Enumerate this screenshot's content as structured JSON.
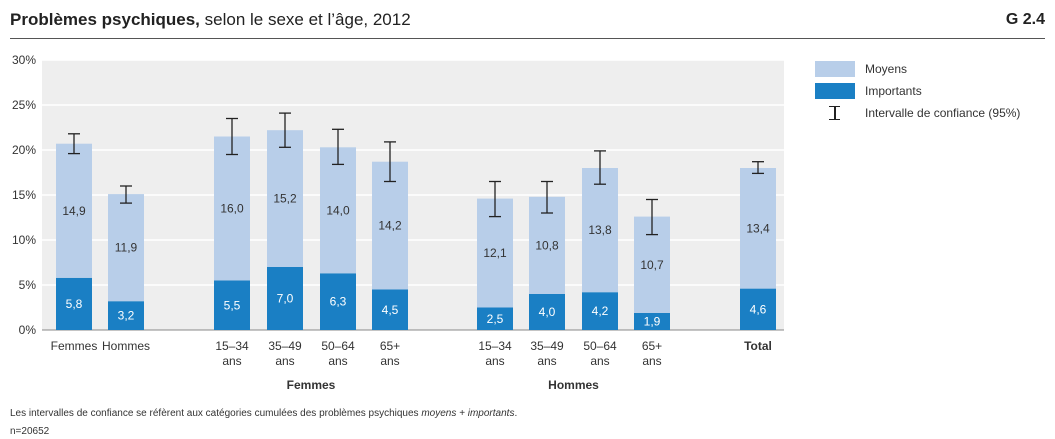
{
  "header": {
    "title_bold": "Problèmes psychiques,",
    "title_rest": " selon le sexe et l’âge, 2012",
    "figure_id": "G 2.4"
  },
  "legend": {
    "moyens": "Moyens",
    "importants": "Importants",
    "ci": "Intervalle de confiance (95%)"
  },
  "footer": {
    "note_prefix": "Les intervalles de confiance se réfèrent aux catégories cumulées des problèmes psychiques ",
    "note_italic": "moyens + importants",
    "note_suffix": ".",
    "n": "n=20652"
  },
  "colors": {
    "moyens": "#b8cee9",
    "importants": "#1a7fc4",
    "plot_bg": "#eeeeee",
    "grid": "#ffffff"
  },
  "chart_data": {
    "type": "bar",
    "stacked": true,
    "ylim": [
      0,
      30
    ],
    "yticks": [
      "0%",
      "5%",
      "10%",
      "15%",
      "20%",
      "25%",
      "30%"
    ],
    "categories": [
      {
        "label": [
          "Femmes"
        ],
        "group": 0,
        "importants": 5.8,
        "moyens": 14.9,
        "ci": [
          19.6,
          21.8
        ],
        "imp_label": "5,8",
        "moy_label": "14,9"
      },
      {
        "label": [
          "Hommes"
        ],
        "group": 0,
        "importants": 3.2,
        "moyens": 11.9,
        "ci": [
          14.1,
          16.0
        ],
        "imp_label": "3,2",
        "moy_label": "11,9"
      },
      {
        "label": [
          "15–34",
          "ans"
        ],
        "group": 1,
        "importants": 5.5,
        "moyens": 16.0,
        "ci": [
          19.5,
          23.5
        ],
        "imp_label": "5,5",
        "moy_label": "16,0"
      },
      {
        "label": [
          "35–49",
          "ans"
        ],
        "group": 1,
        "importants": 7.0,
        "moyens": 15.2,
        "ci": [
          20.3,
          24.1
        ],
        "imp_label": "7,0",
        "moy_label": "15,2"
      },
      {
        "label": [
          "50–64",
          "ans"
        ],
        "group": 1,
        "importants": 6.3,
        "moyens": 14.0,
        "ci": [
          18.4,
          22.3
        ],
        "imp_label": "6,3",
        "moy_label": "14,0"
      },
      {
        "label": [
          "65+",
          "ans"
        ],
        "group": 1,
        "importants": 4.5,
        "moyens": 14.2,
        "ci": [
          16.5,
          20.9
        ],
        "imp_label": "4,5",
        "moy_label": "14,2"
      },
      {
        "label": [
          "15–34",
          "ans"
        ],
        "group": 2,
        "importants": 2.5,
        "moyens": 12.1,
        "ci": [
          12.6,
          16.5
        ],
        "imp_label": "2,5",
        "moy_label": "12,1"
      },
      {
        "label": [
          "35–49",
          "ans"
        ],
        "group": 2,
        "importants": 4.0,
        "moyens": 10.8,
        "ci": [
          13.0,
          16.5
        ],
        "imp_label": "4,0",
        "moy_label": "10,8"
      },
      {
        "label": [
          "50–64",
          "ans"
        ],
        "group": 2,
        "importants": 4.2,
        "moyens": 13.8,
        "ci": [
          16.2,
          19.9
        ],
        "imp_label": "4,2",
        "moy_label": "13,8"
      },
      {
        "label": [
          "65+",
          "ans"
        ],
        "group": 2,
        "importants": 1.9,
        "moyens": 10.7,
        "ci": [
          10.6,
          14.5
        ],
        "imp_label": "1,9",
        "moy_label": "10,7"
      },
      {
        "label": [
          "Total"
        ],
        "group": 3,
        "importants": 4.6,
        "moyens": 13.4,
        "ci": [
          17.4,
          18.7
        ],
        "imp_label": "4,6",
        "moy_label": "13,4",
        "bold": true
      }
    ],
    "group_labels": [
      {
        "label": "Femmes",
        "from": 2,
        "to": 5
      },
      {
        "label": "Hommes",
        "from": 6,
        "to": 9
      }
    ]
  }
}
